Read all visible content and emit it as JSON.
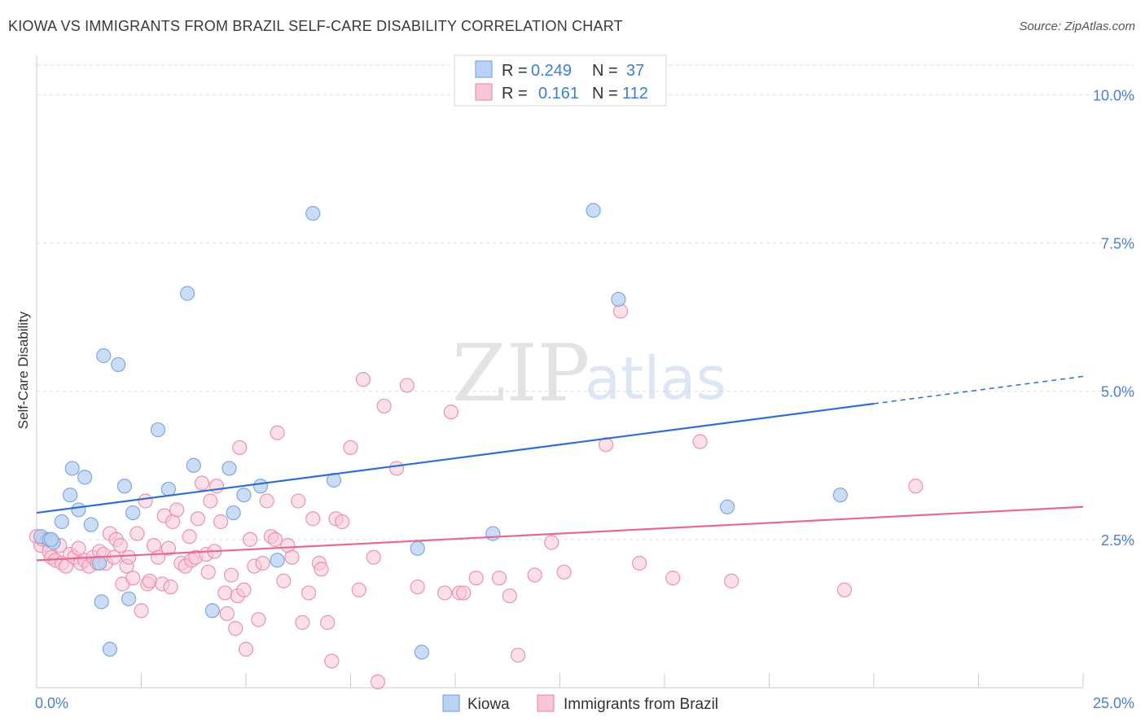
{
  "header": {
    "title": "KIOWA VS IMMIGRANTS FROM BRAZIL SELF-CARE DISABILITY CORRELATION CHART",
    "source": "Source: ZipAtlas.com"
  },
  "watermark": {
    "zip": "ZIP",
    "atlas": "atlas"
  },
  "colors": {
    "kiowa_fill": "#b9d2f3",
    "kiowa_stroke": "#7ea8e0",
    "kiowa_line": "#2d6fd1",
    "brazil_fill": "#f9c6d6",
    "brazil_stroke": "#eb93b0",
    "brazil_line": "#e46a96",
    "tick_label": "#4a7fd0",
    "grid": "#dddddd"
  },
  "legend": {
    "rows": [
      {
        "r_label": "R =",
        "r_value": "0.249",
        "n_label": "N =",
        "n_value": "37"
      },
      {
        "r_label": "R =",
        "r_value": "0.161",
        "n_label": "N =",
        "n_value": "112"
      }
    ]
  },
  "chart_data": {
    "type": "scatter",
    "title": "KIOWA VS IMMIGRANTS FROM BRAZIL SELF-CARE DISABILITY CORRELATION CHART",
    "xlabel": "",
    "ylabel": "Self-Care Disability",
    "xlim": [
      0,
      25
    ],
    "ylim": [
      0,
      10.5
    ],
    "x_tick_labels": [
      "0.0%",
      "25.0%"
    ],
    "y_ticks": [
      2.5,
      5.0,
      7.5,
      10.0
    ],
    "y_tick_labels": [
      "2.5%",
      "5.0%",
      "7.5%",
      "10.0%"
    ],
    "legend": [
      "Kiowa",
      "Immigrants from Brazil"
    ],
    "series": [
      {
        "name": "Kiowa",
        "r": 0.249,
        "n": 37,
        "trend": {
          "x0": 0,
          "y0": 2.95,
          "x1": 20,
          "y1": 4.79,
          "dash_to_x": 25,
          "dash_to_y": 5.25
        },
        "points": [
          [
            0.1,
            2.55
          ],
          [
            0.3,
            2.5
          ],
          [
            0.4,
            2.45
          ],
          [
            0.6,
            2.8
          ],
          [
            0.8,
            3.25
          ],
          [
            0.85,
            3.7
          ],
          [
            1.0,
            3.0
          ],
          [
            1.15,
            3.55
          ],
          [
            1.3,
            2.75
          ],
          [
            1.5,
            2.1
          ],
          [
            1.55,
            1.45
          ],
          [
            1.6,
            5.6
          ],
          [
            1.75,
            0.65
          ],
          [
            1.95,
            5.45
          ],
          [
            2.1,
            3.4
          ],
          [
            2.2,
            1.5
          ],
          [
            2.3,
            2.95
          ],
          [
            2.9,
            4.35
          ],
          [
            3.15,
            3.35
          ],
          [
            3.6,
            6.65
          ],
          [
            3.75,
            3.75
          ],
          [
            4.2,
            1.3
          ],
          [
            4.6,
            3.7
          ],
          [
            4.7,
            2.95
          ],
          [
            4.95,
            3.25
          ],
          [
            5.35,
            3.4
          ],
          [
            5.75,
            2.15
          ],
          [
            6.6,
            8.0
          ],
          [
            7.1,
            3.5
          ],
          [
            9.1,
            2.35
          ],
          [
            9.2,
            0.6
          ],
          [
            10.9,
            2.6
          ],
          [
            13.3,
            8.05
          ],
          [
            13.9,
            6.55
          ],
          [
            16.5,
            3.05
          ],
          [
            19.2,
            3.25
          ],
          [
            0.35,
            2.5
          ]
        ]
      },
      {
        "name": "Immigrants from Brazil",
        "r": 0.161,
        "n": 112,
        "trend": {
          "x0": 0,
          "y0": 2.15,
          "x1": 25,
          "y1": 3.05
        },
        "points": [
          [
            0.0,
            2.55
          ],
          [
            0.1,
            2.4
          ],
          [
            0.15,
            2.5
          ],
          [
            0.25,
            2.5
          ],
          [
            0.3,
            2.3
          ],
          [
            0.35,
            2.2
          ],
          [
            0.45,
            2.15
          ],
          [
            0.55,
            2.4
          ],
          [
            0.6,
            2.1
          ],
          [
            0.7,
            2.05
          ],
          [
            0.8,
            2.25
          ],
          [
            0.9,
            2.2
          ],
          [
            1.0,
            2.35
          ],
          [
            1.05,
            2.1
          ],
          [
            1.15,
            2.15
          ],
          [
            1.25,
            2.05
          ],
          [
            1.35,
            2.2
          ],
          [
            1.45,
            2.1
          ],
          [
            1.5,
            2.3
          ],
          [
            1.6,
            2.25
          ],
          [
            1.65,
            2.1
          ],
          [
            1.75,
            2.6
          ],
          [
            1.85,
            2.2
          ],
          [
            1.9,
            2.5
          ],
          [
            2.0,
            2.4
          ],
          [
            2.05,
            1.75
          ],
          [
            2.15,
            2.05
          ],
          [
            2.2,
            2.2
          ],
          [
            2.3,
            1.85
          ],
          [
            2.4,
            2.6
          ],
          [
            2.5,
            1.3
          ],
          [
            2.6,
            3.15
          ],
          [
            2.65,
            1.75
          ],
          [
            2.7,
            1.8
          ],
          [
            2.8,
            2.4
          ],
          [
            2.9,
            2.2
          ],
          [
            3.0,
            1.75
          ],
          [
            3.05,
            2.9
          ],
          [
            3.15,
            2.35
          ],
          [
            3.2,
            1.7
          ],
          [
            3.25,
            2.8
          ],
          [
            3.35,
            3.0
          ],
          [
            3.45,
            2.1
          ],
          [
            3.55,
            2.05
          ],
          [
            3.65,
            2.55
          ],
          [
            3.7,
            2.15
          ],
          [
            3.8,
            2.2
          ],
          [
            3.85,
            2.85
          ],
          [
            3.95,
            3.45
          ],
          [
            4.05,
            2.25
          ],
          [
            4.1,
            1.95
          ],
          [
            4.15,
            3.15
          ],
          [
            4.25,
            2.3
          ],
          [
            4.3,
            3.4
          ],
          [
            4.4,
            2.8
          ],
          [
            4.5,
            1.6
          ],
          [
            4.55,
            1.25
          ],
          [
            4.65,
            1.9
          ],
          [
            4.75,
            1.0
          ],
          [
            4.8,
            1.55
          ],
          [
            4.85,
            4.05
          ],
          [
            4.95,
            1.65
          ],
          [
            5.0,
            0.65
          ],
          [
            5.1,
            2.5
          ],
          [
            5.2,
            2.05
          ],
          [
            5.3,
            1.15
          ],
          [
            5.4,
            2.1
          ],
          [
            5.5,
            3.15
          ],
          [
            5.6,
            2.55
          ],
          [
            5.7,
            2.5
          ],
          [
            5.75,
            4.3
          ],
          [
            5.9,
            1.8
          ],
          [
            6.0,
            2.4
          ],
          [
            6.1,
            2.2
          ],
          [
            6.25,
            3.15
          ],
          [
            6.35,
            1.1
          ],
          [
            6.5,
            1.6
          ],
          [
            6.6,
            2.85
          ],
          [
            6.75,
            2.1
          ],
          [
            6.8,
            2.0
          ],
          [
            6.95,
            1.1
          ],
          [
            7.05,
            0.45
          ],
          [
            7.15,
            2.85
          ],
          [
            7.3,
            2.8
          ],
          [
            7.5,
            4.05
          ],
          [
            7.7,
            1.65
          ],
          [
            7.8,
            5.2
          ],
          [
            8.05,
            2.2
          ],
          [
            8.15,
            0.1
          ],
          [
            8.3,
            4.75
          ],
          [
            8.6,
            3.7
          ],
          [
            8.85,
            5.1
          ],
          [
            9.1,
            1.7
          ],
          [
            9.75,
            1.6
          ],
          [
            9.9,
            4.65
          ],
          [
            10.1,
            1.6
          ],
          [
            10.5,
            1.85
          ],
          [
            11.05,
            1.85
          ],
          [
            11.3,
            1.55
          ],
          [
            11.5,
            0.55
          ],
          [
            11.9,
            1.9
          ],
          [
            12.3,
            2.45
          ],
          [
            12.6,
            1.95
          ],
          [
            13.6,
            4.1
          ],
          [
            13.95,
            6.35
          ],
          [
            14.4,
            2.1
          ],
          [
            15.2,
            1.85
          ],
          [
            15.85,
            4.15
          ],
          [
            16.6,
            1.8
          ],
          [
            19.3,
            1.65
          ],
          [
            21.0,
            3.4
          ],
          [
            10.2,
            1.6
          ]
        ]
      }
    ]
  },
  "bottom_legend": {
    "kiowa": "Kiowa",
    "brazil": "Immigrants from Brazil"
  }
}
